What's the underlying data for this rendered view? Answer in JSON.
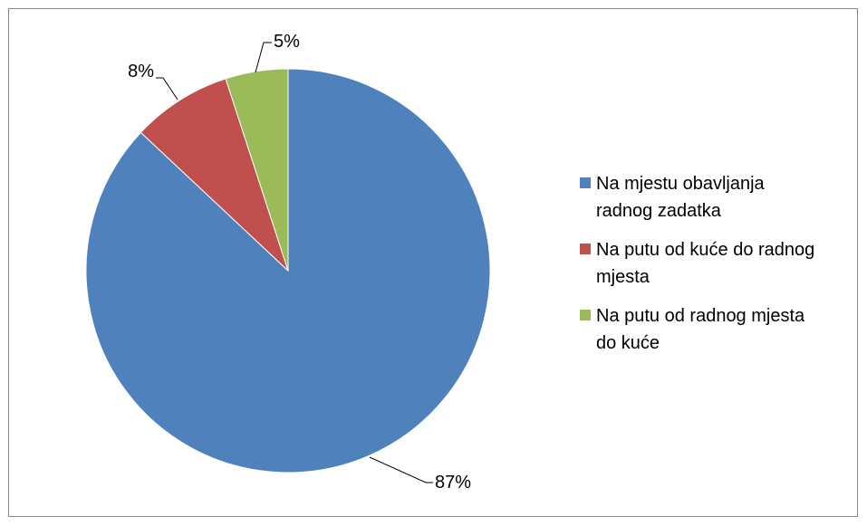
{
  "chart_data": {
    "type": "pie",
    "categories": [
      "Na mjestu obavljanja radnog zadatka",
      "Na putu od kuće do radnog mjesta",
      "Na putu od radnog mjesta do kuće"
    ],
    "values": [
      87,
      8,
      5
    ],
    "data_labels": [
      "87%",
      "8%",
      "5%"
    ],
    "colors": [
      "#4F81BD",
      "#C0504D",
      "#9BBB59"
    ],
    "legend_position": "right",
    "title": ""
  }
}
